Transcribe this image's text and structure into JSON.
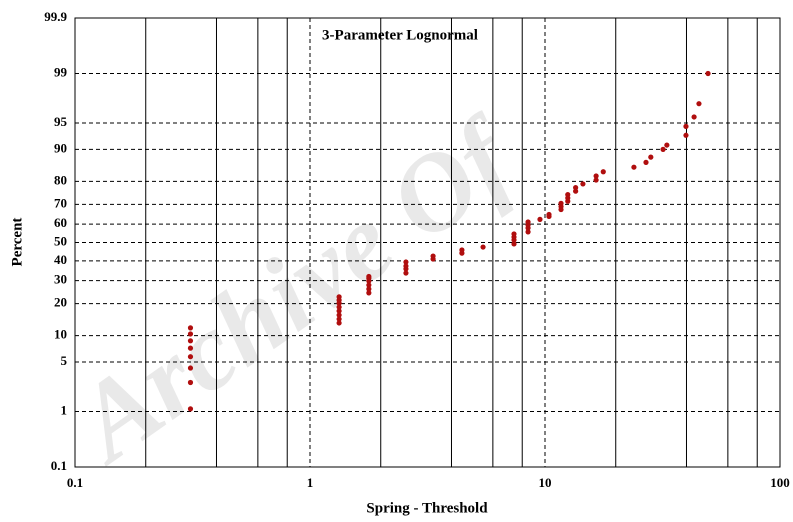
{
  "chart_data": {
    "type": "scatter",
    "title": "3-Parameter Lognormal",
    "x_label": "Spring - Threshold",
    "y_label": "Percent",
    "watermark": "Archive Of",
    "xscale": "log",
    "yscale": "probability",
    "xlim": [
      0.1,
      100
    ],
    "xticks": [
      0.1,
      1,
      10,
      100
    ],
    "xminor": [
      0.2,
      0.4,
      0.6,
      0.8,
      2,
      4,
      6,
      8,
      20,
      40,
      60,
      80
    ],
    "ylim": [
      0.1,
      99.9
    ],
    "yticks": [
      0.1,
      1,
      5,
      10,
      20,
      30,
      40,
      50,
      60,
      70,
      80,
      90,
      95,
      99,
      99.9
    ],
    "grid": true,
    "color": "#b00e0e",
    "x": [
      0.31,
      0.31,
      0.31,
      0.31,
      0.31,
      0.31,
      0.31,
      0.31,
      1.33,
      1.33,
      1.33,
      1.33,
      1.33,
      1.33,
      1.33,
      1.33,
      1.78,
      1.78,
      1.78,
      1.78,
      1.78,
      1.78,
      2.56,
      2.56,
      2.56,
      2.56,
      3.34,
      3.34,
      4.43,
      4.43,
      5.45,
      7.38,
      7.38,
      7.38,
      7.38,
      8.47,
      8.47,
      8.47,
      8.47,
      9.52,
      10.4,
      10.4,
      11.7,
      11.7,
      11.7,
      12.5,
      12.5,
      12.5,
      13.5,
      13.5,
      14.5,
      16.5,
      16.5,
      17.7,
      23.9,
      26.9,
      28.2,
      31.8,
      33.0,
      39.8,
      39.8,
      43.1,
      45.2,
      49.4
    ],
    "y": [
      1.1,
      2.7,
      4.2,
      5.8,
      7.3,
      8.8,
      10.4,
      12.0,
      13.4,
      14.6,
      15.9,
      17.3,
      18.7,
      20.2,
      21.4,
      22.7,
      24.4,
      26.1,
      27.9,
      29.8,
      31.2,
      32.0,
      33.7,
      35.8,
      37.3,
      39.4,
      41.0,
      42.6,
      44.2,
      45.9,
      47.5,
      49.2,
      51.4,
      53.0,
      54.7,
      55.8,
      57.9,
      59.5,
      61.1,
      62.5,
      64.0,
      65.0,
      67.5,
      69.0,
      70.5,
      71.5,
      73.0,
      74.5,
      76.0,
      77.5,
      79.0,
      80.5,
      82.0,
      83.5,
      85.0,
      86.5,
      88.0,
      90.0,
      91.0,
      93.0,
      94.5,
      95.8,
      97.2,
      99.0
    ]
  }
}
